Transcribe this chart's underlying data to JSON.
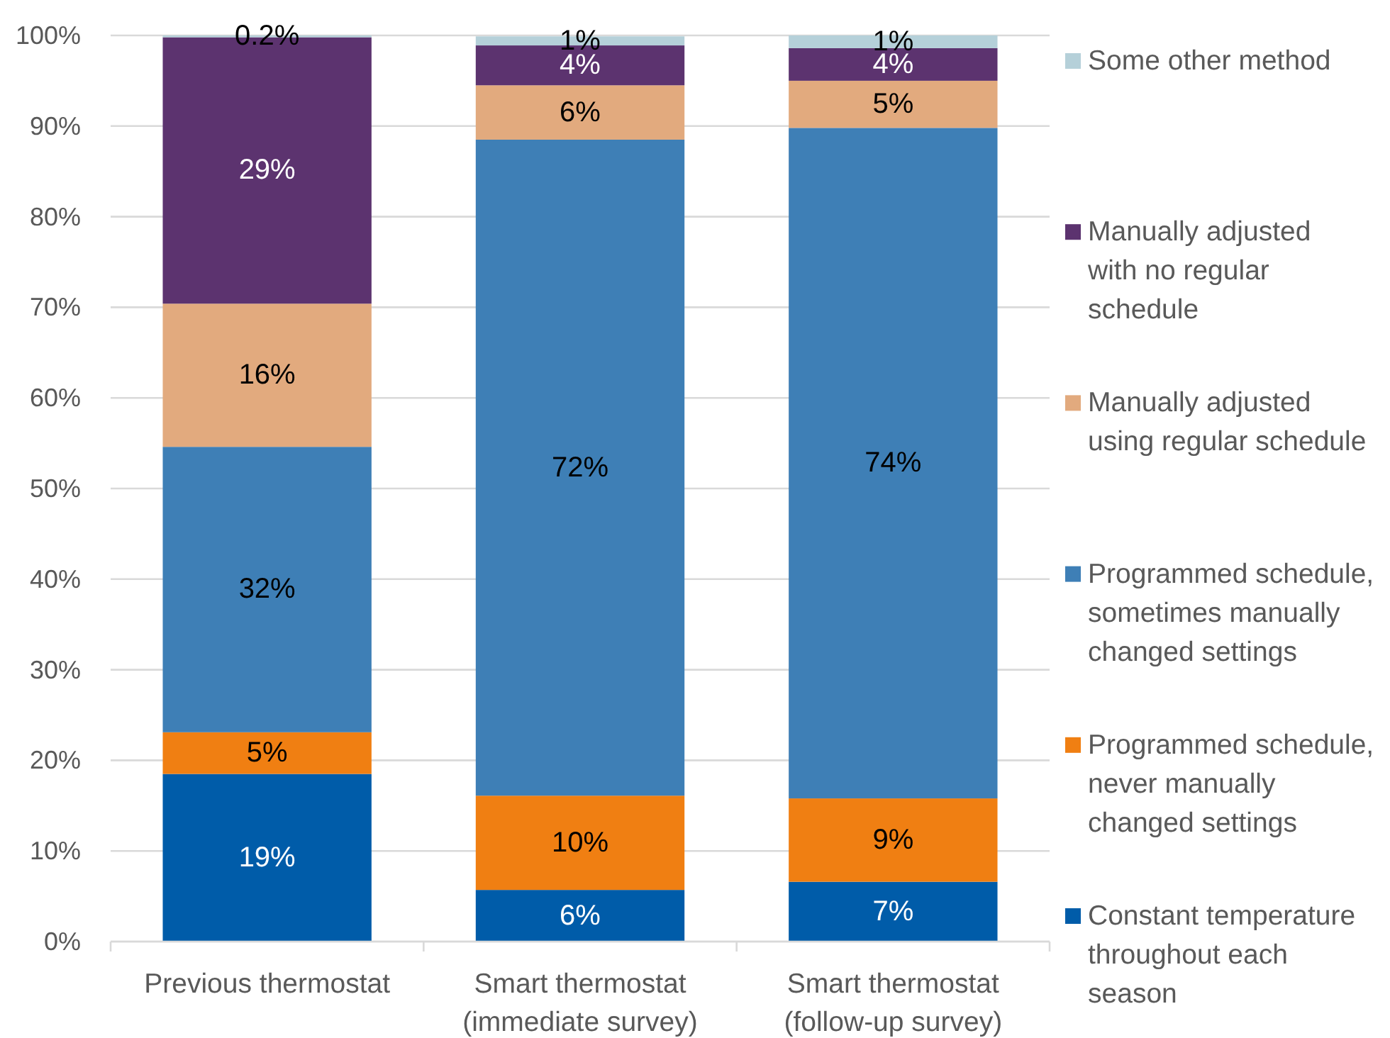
{
  "chart_data": {
    "type": "bar",
    "stacked": true,
    "categories": [
      "Previous thermostat",
      "Smart thermostat\n(immediate survey)",
      "Smart thermostat\n(follow-up survey)"
    ],
    "series": [
      {
        "name": "Constant temperature\nthroughout each\nseason",
        "color": "#005ca9",
        "values": [
          18.5,
          5.7,
          6.6
        ],
        "value_labels": [
          "19%",
          "6%",
          "7%"
        ]
      },
      {
        "name": "Programmed schedule,\nnever manually\nchanged settings",
        "color": "#f07f12",
        "values": [
          4.6,
          10.4,
          9.2
        ],
        "value_labels": [
          "5%",
          "10%",
          "9%"
        ]
      },
      {
        "name": "Programmed schedule,\nsometimes manually\nchanged settings",
        "color": "#3e7fb6",
        "values": [
          31.5,
          72.4,
          74.0
        ],
        "value_labels": [
          "32%",
          "72%",
          "74%"
        ]
      },
      {
        "name": "Manually adjusted\nusing regular schedule",
        "color": "#e2aa7e",
        "values": [
          15.8,
          6.0,
          5.2
        ],
        "value_labels": [
          "16%",
          "6%",
          "5%"
        ]
      },
      {
        "name": "Manually adjusted\nwith no regular\nschedule",
        "color": "#5c336f",
        "values": [
          29.4,
          4.4,
          3.6
        ],
        "value_labels": [
          "29%",
          "4%",
          "4%"
        ]
      },
      {
        "name": "Some other method",
        "color": "#b5d0d9",
        "values": [
          0.2,
          1.0,
          1.4
        ],
        "value_labels": [
          "0.2%",
          "1%",
          "1%"
        ]
      }
    ],
    "ylim": [
      0,
      100
    ],
    "yticks": [
      {
        "value": 0,
        "label": "0%"
      },
      {
        "value": 10,
        "label": "10%"
      },
      {
        "value": 20,
        "label": "20%"
      },
      {
        "value": 30,
        "label": "30%"
      },
      {
        "value": 40,
        "label": "40%"
      },
      {
        "value": 50,
        "label": "50%"
      },
      {
        "value": 60,
        "label": "60%"
      },
      {
        "value": 70,
        "label": "70%"
      },
      {
        "value": 80,
        "label": "80%"
      },
      {
        "value": 90,
        "label": "90%"
      },
      {
        "value": 100,
        "label": "100%"
      }
    ],
    "grid": "y",
    "legend": "right"
  }
}
